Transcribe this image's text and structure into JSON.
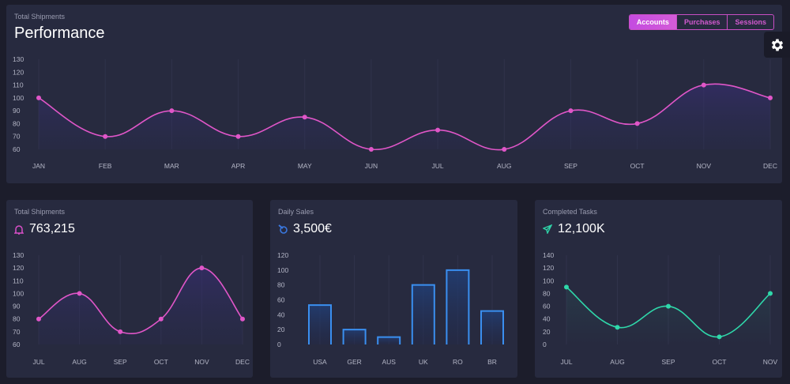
{
  "performance": {
    "subtitle": "Total Shipments",
    "title": "Performance",
    "tabs": [
      {
        "label": "Accounts",
        "active": true
      },
      {
        "label": "Purchases",
        "active": false
      },
      {
        "label": "Sessions",
        "active": false
      }
    ]
  },
  "settings": {
    "icon": "gear-icon"
  },
  "cards": [
    {
      "subtitle": "Total Shipments",
      "value": "763,215",
      "icon": "bell-icon",
      "icon_color": "#d94fc8"
    },
    {
      "subtitle": "Daily Sales",
      "value": "3,500€",
      "icon": "coins-icon",
      "icon_color": "#3a78e0"
    },
    {
      "subtitle": "Completed Tasks",
      "value": "12,100K",
      "icon": "paper-plane-icon",
      "icon_color": "#2fd3a8"
    }
  ],
  "chart_data": [
    {
      "type": "line",
      "categories": [
        "JAN",
        "FEB",
        "MAR",
        "APR",
        "MAY",
        "JUN",
        "JUL",
        "AUG",
        "SEP",
        "OCT",
        "NOV",
        "DEC"
      ],
      "values": [
        100,
        70,
        90,
        70,
        85,
        60,
        75,
        60,
        90,
        80,
        110,
        100
      ],
      "ylim": [
        60,
        130
      ],
      "yticks": [
        "130",
        "120",
        "110",
        "100",
        "90",
        "80",
        "70",
        "60"
      ],
      "color": "#e056c8"
    },
    {
      "type": "line",
      "categories": [
        "JUL",
        "AUG",
        "SEP",
        "OCT",
        "NOV",
        "DEC"
      ],
      "values": [
        80,
        100,
        70,
        80,
        120,
        80
      ],
      "ylim": [
        60,
        130
      ],
      "yticks": [
        "130",
        "120",
        "110",
        "100",
        "90",
        "80",
        "70",
        "60"
      ],
      "color": "#e056c8"
    },
    {
      "type": "bar",
      "categories": [
        "USA",
        "GER",
        "AUS",
        "UK",
        "RO",
        "BR"
      ],
      "values": [
        53,
        20,
        10,
        80,
        100,
        45
      ],
      "ylim": [
        0,
        120
      ],
      "yticks": [
        "120",
        "100",
        "80",
        "60",
        "40",
        "20",
        "0"
      ],
      "color": "#3a8ff0"
    },
    {
      "type": "line",
      "categories": [
        "JUL",
        "AUG",
        "SEP",
        "OCT",
        "NOV"
      ],
      "values": [
        90,
        27,
        60,
        12,
        80
      ],
      "ylim": [
        0,
        140
      ],
      "yticks": [
        "140",
        "120",
        "100",
        "80",
        "60",
        "40",
        "20",
        "0"
      ],
      "color": "#2fd8aa"
    }
  ]
}
